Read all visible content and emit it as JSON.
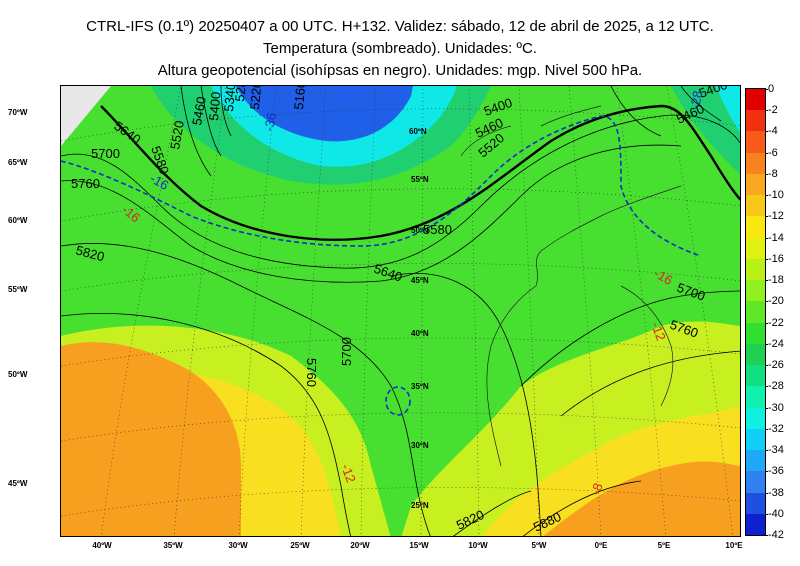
{
  "header": {
    "line1": "CTRL-IFS (0.1º) 20250407 a 00 UTC. H+132. Validez: sábado, 12 de abril de 2025, a 12 UTC.",
    "line2": "Temperatura (sombreado). Unidades: ºC.",
    "line3": "Altura geopotencial (isohípsas en negro). Unidades: mgp. Nivel 500 hPa."
  },
  "axes": {
    "lon_labels": [
      "40ºW",
      "35ºW",
      "30ºW",
      "25ºW",
      "20ºW",
      "15ºW",
      "10ºW",
      "5ºW",
      "0ºE",
      "5ºE",
      "10ºE"
    ],
    "lat_labels": [
      "70ºW",
      "65ºW",
      "60ºW",
      "55ºW",
      "50ºW",
      "45ºW"
    ]
  },
  "map_grid_labels": [
    "60ºN",
    "55ºN",
    "50ºN",
    "45ºN",
    "40ºN",
    "35ºN",
    "30ºN",
    "25ºN"
  ],
  "contour_labels": {
    "geopotential": [
      "5640",
      "5700",
      "5760",
      "5820",
      "5580",
      "5520",
      "5460",
      "5400",
      "5340",
      "5280",
      "5220",
      "5160",
      "5640",
      "5700",
      "5760",
      "5820",
      "5880",
      "5400",
      "5460",
      "5520",
      "5580",
      "5400",
      "5460",
      "5700",
      "5760"
    ],
    "temperature": [
      "-16",
      "-16",
      "-36",
      "-28",
      "-16",
      "-12",
      "-12",
      "-8"
    ]
  },
  "colorbar": {
    "labels": [
      "0",
      "-2",
      "-4",
      "-6",
      "-8",
      "-10",
      "-12",
      "-14",
      "-16",
      "-18",
      "-20",
      "-22",
      "-24",
      "-26",
      "-28",
      "-30",
      "-32",
      "-34",
      "-36",
      "-38",
      "-40",
      "-42"
    ],
    "colors": [
      "#e00000",
      "#f03010",
      "#f85a18",
      "#f88220",
      "#f8a820",
      "#f8c818",
      "#f8e810",
      "#e0f010",
      "#b8f018",
      "#90f020",
      "#60e828",
      "#30e030",
      "#20d050",
      "#10e080",
      "#10f0b0",
      "#10f0e0",
      "#10d0f8",
      "#20a8f8",
      "#3080f0",
      "#2050e0",
      "#1020d0"
    ]
  },
  "field_colors": {
    "orange": "#f7a020",
    "yellow": "#f8e020",
    "lime": "#c8f020",
    "green": "#48e030",
    "teal": "#20d070",
    "cyan": "#10e8e8",
    "blue": "#2060e8",
    "gray": "#e8e8e8"
  }
}
